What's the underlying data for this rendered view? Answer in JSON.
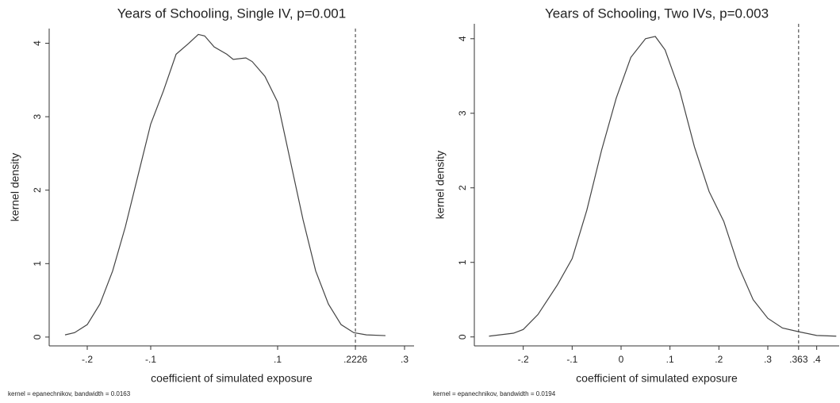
{
  "chart_data": [
    {
      "type": "line",
      "title": "Years of Schooling, Single IV,  p=0.001",
      "x_label": "coefficient of simulated exposure",
      "y_label": "kernel density",
      "note": "kernel = epanechnikov, bandwidth = 0.0163",
      "x": [
        -0.235,
        -0.22,
        -0.2,
        -0.18,
        -0.16,
        -0.14,
        -0.12,
        -0.1,
        -0.08,
        -0.06,
        -0.04,
        -0.025,
        -0.015,
        0,
        0.02,
        0.03,
        0.05,
        0.06,
        0.08,
        0.1,
        0.12,
        0.14,
        0.16,
        0.18,
        0.2,
        0.22,
        0.24,
        0.27
      ],
      "series": [
        {
          "color": "#444444",
          "values": [
            0.03,
            0.06,
            0.17,
            0.45,
            0.9,
            1.5,
            2.2,
            2.9,
            3.35,
            3.85,
            4.0,
            4.12,
            4.1,
            3.95,
            3.85,
            3.78,
            3.8,
            3.75,
            3.55,
            3.2,
            2.4,
            1.6,
            0.9,
            0.45,
            0.17,
            0.06,
            0.03,
            0.02
          ]
        }
      ],
      "reference_line": 0.2226,
      "xlim": [
        -0.26,
        0.315
      ],
      "ylim": [
        -0.12,
        4.2
      ],
      "xticks": [
        {
          "value": -0.2,
          "label": "-.2"
        },
        {
          "value": -0.1,
          "label": "-.1"
        },
        {
          "value": 0.1,
          "label": ".1"
        },
        {
          "value": 0.2226,
          "label": ".2226"
        },
        {
          "value": 0.3,
          "label": ".3"
        }
      ],
      "yticks": [
        0,
        1,
        2,
        3,
        4
      ]
    },
    {
      "type": "line",
      "title": "Years of Schooling, Two IVs,  p=0.003",
      "x_label": "coefficient of simulated exposure",
      "y_label": "kernel density",
      "note": "kernel = epanechnikov, bandwidth = 0.0194",
      "x": [
        -0.27,
        -0.22,
        -0.2,
        -0.17,
        -0.13,
        -0.1,
        -0.07,
        -0.04,
        -0.01,
        0.02,
        0.05,
        0.07,
        0.09,
        0.12,
        0.15,
        0.18,
        0.21,
        0.24,
        0.27,
        0.3,
        0.33,
        0.363,
        0.4,
        0.44
      ],
      "series": [
        {
          "color": "#444444",
          "values": [
            0.01,
            0.05,
            0.1,
            0.3,
            0.7,
            1.05,
            1.7,
            2.5,
            3.2,
            3.75,
            4.0,
            4.03,
            3.85,
            3.3,
            2.55,
            1.95,
            1.55,
            0.95,
            0.5,
            0.25,
            0.12,
            0.07,
            0.02,
            0.01
          ]
        }
      ],
      "reference_line": 0.363,
      "xlim": [
        -0.3,
        0.446
      ],
      "ylim": [
        -0.12,
        4.2
      ],
      "xticks": [
        {
          "value": -0.2,
          "label": "-.2"
        },
        {
          "value": -0.1,
          "label": "-.1"
        },
        0,
        {
          "value": 0.1,
          "label": ".1"
        },
        {
          "value": 0.2,
          "label": ".2"
        },
        {
          "value": 0.3,
          "label": ".3"
        },
        {
          "value": 0.363,
          "label": ".363"
        },
        {
          "value": 0.4,
          "label": ".4"
        }
      ],
      "yticks": [
        0,
        1,
        2,
        3,
        4
      ]
    }
  ]
}
